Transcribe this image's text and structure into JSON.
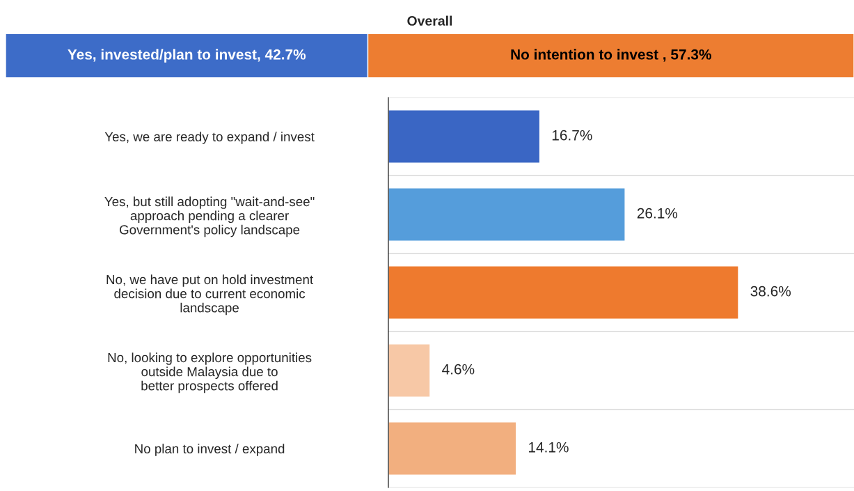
{
  "chart_data": [
    {
      "type": "bar",
      "title": "Overall",
      "orientation": "horizontal",
      "stacked": true,
      "categories": [
        null
      ],
      "series": [
        {
          "color": "#3d6cc8",
          "values": [
            42.7
          ],
          "value_labels": [
            "Yes, invested/plan to invest, 42.7%"
          ]
        },
        {
          "color": "#ed7d31",
          "values": [
            57.3
          ],
          "value_labels": [
            "No intention to invest , 57.3%"
          ]
        }
      ]
    },
    {
      "type": "bar",
      "orientation": "horizontal",
      "categories": [
        "Yes, we are ready to expand / invest",
        "Yes, but still adopting \"wait-and-see\"\napproach pending a clearer\nGovernment's policy landscape",
        "No, we have put on hold investment\ndecision due to current economic\nlandscape",
        "No, looking to explore opportunities\noutside Malaysia due to\nbetter prospects offered",
        "No plan to invest / expand"
      ],
      "values": [
        16.7,
        26.1,
        38.6,
        4.6,
        14.1
      ],
      "colors": [
        "#3a66c4",
        "#559ddb",
        "#ee7a2e",
        "#f7c8a6",
        "#f2af7f"
      ],
      "value_labels": [
        "16.7%",
        "26.1%",
        "38.6%",
        "4.6%",
        "14.1%"
      ]
    }
  ]
}
